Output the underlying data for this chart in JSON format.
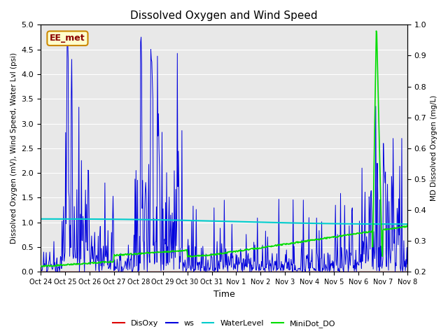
{
  "title": "Dissolved Oxygen and Wind Speed",
  "ylabel_left": "Dissolved Oxygen (mV), Wind Speed, Water Lvl (psi)",
  "ylabel_right": "MD Dissolved Oxygen (mg/L)",
  "xlabel": "Time",
  "annotation": "EE_met",
  "ylim_left": [
    0.0,
    5.0
  ],
  "ylim_right": [
    0.2,
    1.0
  ],
  "bg_color": "#e8e8e8",
  "fig_bg_color": "#ffffff",
  "xtick_labels": [
    "Oct 24",
    "Oct 25",
    "Oct 26",
    "Oct 27",
    "Oct 28",
    "Oct 29",
    "Oct 30",
    "Oct 31",
    "Nov 1",
    "Nov 2",
    "Nov 3",
    "Nov 4",
    "Nov 5",
    "Nov 6",
    "Nov 7",
    "Nov 8"
  ],
  "legend_labels": [
    "DisOxy",
    "ws",
    "WaterLevel",
    "MiniDot_DO"
  ],
  "legend_colors": [
    "#dd0000",
    "#0000dd",
    "#00cccc",
    "#00dd00"
  ]
}
